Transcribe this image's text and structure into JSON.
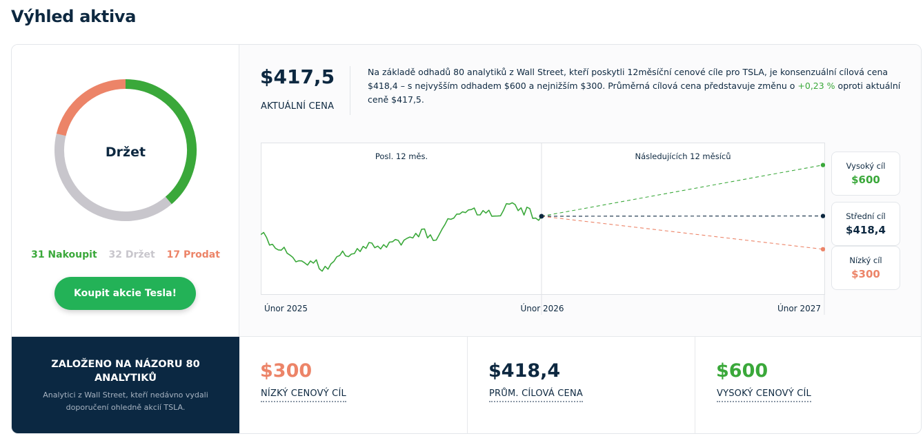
{
  "page": {
    "title": "Výhled aktiva"
  },
  "consensus": {
    "rating": "Držet",
    "buy_count_label": "31 Nakoupit",
    "hold_count_label": "32 Držet",
    "sell_count_label": "17 Prodat",
    "buy": 31,
    "hold": 32,
    "sell": 17,
    "colors": {
      "buy": "#3aa83a",
      "hold": "#c8c6cc",
      "sell": "#ec8468"
    },
    "button_label": "Koupit akcie Tesla!"
  },
  "price": {
    "value": "$417,5",
    "label": "AKTUÁLNÍ CENA",
    "description_pre": "Na základě odhadů 80 analytiků z Wall Street, kteří poskytli 12měsíční cenové cíle pro TSLA, je konsenzuální cílová cena $418,4 – s nejvyšším odhadem $600 a nejnižším $300. Průměrná cílová cena představuje změnu o ",
    "description_pct": "+0,23 %",
    "description_post": " oproti aktuální ceně $417,5."
  },
  "targets": {
    "high_label": "Vysoký cíl",
    "high_value": "$600",
    "avg_label": "Střední cíl",
    "avg_value": "$418,4",
    "low_label": "Nízký cíl",
    "low_value": "$300"
  },
  "chart_data": {
    "type": "line",
    "past_label": "Posl. 12 měs.",
    "future_label": "Následujících 12 měsíců",
    "x_tick_labels": [
      "Únor 2025",
      "Únor 2026",
      "Únor 2027"
    ],
    "ylim": [
      140,
      680
    ],
    "history": [
      352,
      338,
      321,
      308,
      300,
      279,
      262,
      248,
      240,
      254,
      241,
      232,
      248,
      280,
      283,
      270,
      288,
      302,
      296,
      322,
      318,
      306,
      322,
      338,
      325,
      332,
      340,
      351,
      362,
      348,
      336,
      382,
      402,
      411,
      432,
      420,
      438,
      426,
      448,
      432,
      418,
      426,
      452,
      462,
      441,
      432,
      438,
      411,
      417
    ],
    "current": 417.5,
    "targets": {
      "high": 600,
      "average": 418.4,
      "low": 300
    },
    "colors": {
      "history": "#3aa83a",
      "high": "#3aa83a",
      "average": "#0d2840",
      "low": "#ec8468"
    }
  },
  "summary": {
    "title": "ZALOŽENO NA NÁZORU 80 ANALYTIKŮ",
    "subtitle": "Analytici z Wall Street, kteří nedávno vydali doporučení ohledně akcií TSLA.",
    "low_value": "$300",
    "low_label": "NÍZKÝ CENOVÝ CÍL",
    "avg_value": "$418,4",
    "avg_label": "PRŮM. CÍLOVÁ CENA",
    "high_value": "$600",
    "high_label": "VYSOKÝ CENOVÝ CÍL"
  }
}
